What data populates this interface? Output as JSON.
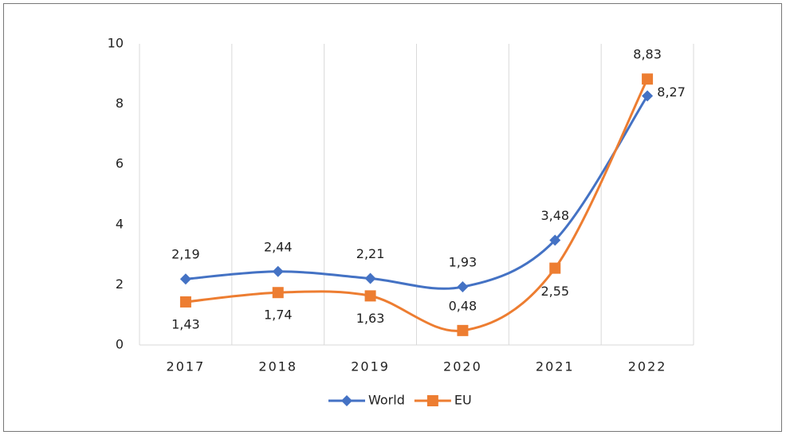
{
  "chart_data": {
    "type": "line",
    "categories": [
      "2017",
      "2018",
      "2019",
      "2020",
      "2021",
      "2022"
    ],
    "series": [
      {
        "name": "World",
        "color": "#4472c4",
        "marker": "diamond",
        "values": [
          2.19,
          2.44,
          2.21,
          1.93,
          3.48,
          8.27
        ],
        "value_labels": [
          "2,19",
          "2,44",
          "2,21",
          "1,93",
          "3,48",
          "8,27"
        ]
      },
      {
        "name": "EU",
        "color": "#ed7d31",
        "marker": "square",
        "values": [
          1.43,
          1.74,
          1.63,
          0.48,
          2.55,
          8.83
        ],
        "value_labels": [
          "1,43",
          "1,74",
          "1,63",
          "0,48",
          "2,55",
          "8,83"
        ]
      }
    ],
    "ylim": [
      0,
      10
    ],
    "yticks": [
      0,
      2,
      4,
      6,
      8,
      10
    ],
    "grid": true,
    "smooth": true,
    "legend": "bottom"
  }
}
